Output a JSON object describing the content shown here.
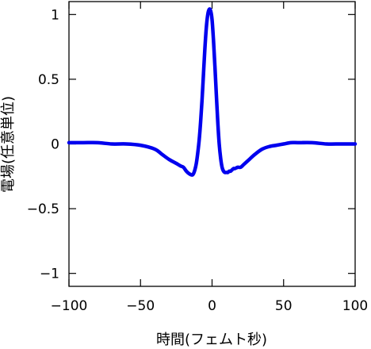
{
  "chart_data": {
    "type": "line",
    "title": "",
    "xlabel": "時間(フェムト秒)",
    "ylabel": "電場(任意単位)",
    "xlim": [
      -100,
      100
    ],
    "ylim": [
      -1.1,
      1.1
    ],
    "xticks": [
      -100,
      -50,
      0,
      50,
      100
    ],
    "xtick_labels": [
      "−100",
      "−50",
      "0",
      "50",
      "100"
    ],
    "yticks": [
      -1,
      -0.5,
      0,
      0.5,
      1
    ],
    "ytick_labels": [
      "−1",
      "−0.5",
      "0",
      "0.5",
      "1"
    ],
    "grid": false,
    "legend": "none",
    "series": [
      {
        "color": "#0000ee",
        "x": [
          -100,
          -90,
          -80,
          -70,
          -60,
          -50,
          -40,
          -35,
          -30,
          -25,
          -22,
          -20,
          -18,
          -16,
          -14,
          -13,
          -12,
          -11,
          -10,
          -9,
          -8,
          -7,
          -6,
          -5,
          -4,
          -3,
          -2,
          -1,
          0,
          1,
          2,
          3,
          4,
          5,
          6,
          7,
          8,
          9,
          10,
          11,
          12,
          13,
          14,
          15,
          16,
          18,
          20,
          22,
          25,
          30,
          35,
          40,
          45,
          50,
          55,
          60,
          70,
          80,
          90,
          100
        ],
        "y": [
          0.01,
          0.01,
          0.01,
          0.0,
          0.0,
          -0.01,
          -0.04,
          -0.08,
          -0.12,
          -0.15,
          -0.17,
          -0.18,
          -0.21,
          -0.23,
          -0.24,
          -0.23,
          -0.2,
          -0.15,
          -0.07,
          0.03,
          0.17,
          0.34,
          0.54,
          0.74,
          0.9,
          1.0,
          1.04,
          1.03,
          0.96,
          0.8,
          0.6,
          0.38,
          0.17,
          0.0,
          -0.11,
          -0.18,
          -0.21,
          -0.22,
          -0.22,
          -0.22,
          -0.21,
          -0.21,
          -0.2,
          -0.19,
          -0.19,
          -0.18,
          -0.18,
          -0.16,
          -0.13,
          -0.08,
          -0.04,
          -0.02,
          -0.01,
          0.0,
          0.01,
          0.01,
          0.01,
          0.0,
          0.0,
          0.0
        ]
      }
    ]
  }
}
